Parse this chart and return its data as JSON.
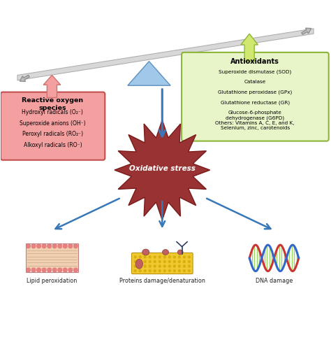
{
  "bg_color": "#ffffff",
  "title": "Oxidative stress",
  "ros_box": {
    "title": "Reactive oxygen\nspecies",
    "items": [
      "Hydroxyl radicals (O₂⁻)",
      "Superoxide anions (OH⁻)",
      "Peroxyl radicals (RO₂⁻)",
      "Alkoxyl radicals (RO⁻)"
    ],
    "box_color": "#f4a0a0",
    "border_color": "#c05050",
    "text_color": "#000000"
  },
  "antioxidants_box": {
    "title": "Antioxidants",
    "items": [
      "Superoxide dismutase (SOD)",
      "Catalase",
      "Glutathione peroxidase (GPx)",
      "Glutathione reductase (GR)",
      "Glucose-6-phosphate\ndehydrogenase (G6PD)",
      "Others: Vitamins A, C, E, and K,\nSelenium, zinc, carotenoids"
    ],
    "box_color": "#e8f5c8",
    "border_color": "#8db53a",
    "text_color": "#000000"
  },
  "outcomes": [
    "Lipid peroxidation",
    "Proteins damage/denaturation",
    "DNA damage"
  ],
  "arrow_color": "#3878b8",
  "triangle_color": "#a0c8e8",
  "stress_color": "#993333",
  "ros_arrow_color": "#f08080",
  "anti_arrow_color": "#c8e878"
}
